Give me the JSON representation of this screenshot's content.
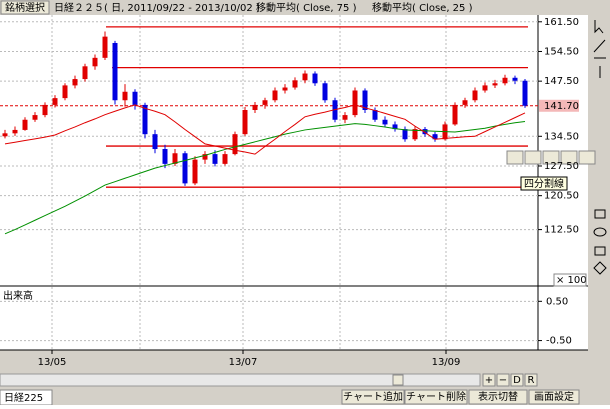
{
  "toolbar": {
    "select_button": "銘柄選択",
    "title": "日経２２５( 日, 2011/09/22 - 2013/10/02 )",
    "ma1": "移動平均( Close, 75 )",
    "ma2": "移動平均( Close, 25 )"
  },
  "chart": {
    "type": "candlestick",
    "ylim": [
      99.2,
      163.1
    ],
    "yticks": [
      {
        "value": 161.5,
        "label": "161.50"
      },
      {
        "value": 154.5,
        "label": "154.50"
      },
      {
        "value": 147.5,
        "label": "147.50"
      },
      {
        "value": 134.5,
        "label": "134.50"
      },
      {
        "value": 127.5,
        "label": "127.50"
      },
      {
        "value": 120.5,
        "label": "120.50"
      },
      {
        "value": 112.5,
        "label": "112.50"
      }
    ],
    "grid": true,
    "up_color": "#e00000",
    "down_color": "#0000e0",
    "ohlc": [
      [
        134.5,
        136.0,
        134.0,
        135.2
      ],
      [
        135.2,
        136.8,
        134.6,
        136.0
      ],
      [
        136.0,
        139.0,
        135.8,
        138.4
      ],
      [
        138.4,
        140.2,
        137.9,
        139.5
      ],
      [
        139.5,
        142.5,
        139.0,
        141.9
      ],
      [
        141.9,
        144.2,
        141.3,
        143.5
      ],
      [
        143.5,
        147.0,
        143.0,
        146.5
      ],
      [
        146.5,
        148.8,
        145.8,
        148.0
      ],
      [
        148.0,
        151.6,
        147.4,
        151.0
      ],
      [
        151.0,
        153.8,
        150.2,
        153.0
      ],
      [
        153.0,
        159.2,
        152.5,
        158.0
      ],
      [
        156.5,
        157.0,
        142.0,
        143.0
      ],
      [
        143.0,
        146.8,
        141.5,
        145.0
      ],
      [
        145.0,
        145.6,
        140.8,
        141.9
      ],
      [
        141.9,
        142.4,
        134.0,
        135.0
      ],
      [
        135.0,
        136.0,
        130.5,
        131.5
      ],
      [
        131.5,
        132.5,
        127.0,
        128.0
      ],
      [
        128.0,
        131.5,
        127.5,
        130.5
      ],
      [
        130.5,
        131.0,
        122.8,
        123.4
      ],
      [
        123.4,
        129.8,
        123.0,
        129.0
      ],
      [
        129.0,
        131.0,
        128.0,
        130.3
      ],
      [
        130.3,
        131.2,
        127.4,
        128.0
      ],
      [
        128.0,
        131.0,
        127.6,
        130.3
      ],
      [
        130.3,
        135.6,
        130.0,
        135.0
      ],
      [
        135.0,
        141.4,
        134.6,
        140.7
      ],
      [
        140.7,
        142.6,
        140.0,
        141.9
      ],
      [
        141.9,
        143.6,
        141.0,
        143.0
      ],
      [
        143.0,
        146.0,
        142.5,
        145.3
      ],
      [
        145.3,
        146.8,
        144.6,
        146.0
      ],
      [
        146.0,
        148.4,
        145.5,
        147.7
      ],
      [
        147.7,
        150.0,
        147.0,
        149.3
      ],
      [
        149.3,
        149.8,
        146.4,
        147.0
      ],
      [
        147.0,
        147.5,
        142.4,
        143.0
      ],
      [
        143.0,
        143.6,
        137.8,
        138.4
      ],
      [
        138.4,
        140.2,
        137.6,
        139.5
      ],
      [
        139.5,
        146.0,
        139.0,
        145.3
      ],
      [
        145.3,
        145.8,
        140.0,
        140.7
      ],
      [
        140.7,
        141.3,
        137.9,
        138.4
      ],
      [
        138.4,
        139.2,
        136.8,
        137.3
      ],
      [
        137.3,
        138.0,
        135.6,
        136.2
      ],
      [
        136.2,
        136.8,
        133.2,
        133.8
      ],
      [
        133.8,
        136.9,
        133.4,
        136.2
      ],
      [
        136.2,
        136.7,
        134.4,
        135.0
      ],
      [
        135.0,
        135.5,
        133.2,
        133.8
      ],
      [
        133.8,
        138.0,
        133.5,
        137.3
      ],
      [
        137.3,
        142.5,
        137.0,
        141.9
      ],
      [
        141.9,
        143.6,
        141.2,
        143.0
      ],
      [
        143.0,
        146.0,
        142.5,
        145.3
      ],
      [
        145.3,
        147.2,
        144.8,
        146.5
      ],
      [
        146.5,
        147.8,
        145.9,
        147.0
      ],
      [
        147.0,
        149.0,
        146.5,
        148.3
      ],
      [
        148.3,
        148.8,
        146.8,
        147.6
      ],
      [
        147.6,
        148.0,
        141.2,
        141.7
      ]
    ],
    "series": [
      {
        "color": "#009000",
        "values": [
          111.5,
          112.5,
          113.6,
          114.7,
          115.8,
          116.9,
          118.0,
          119.2,
          120.4,
          121.7,
          123.0,
          123.8,
          124.6,
          125.4,
          126.2,
          127.0,
          127.6,
          128.2,
          128.8,
          129.4,
          130.0,
          130.7,
          131.4,
          132.0,
          132.6,
          133.2,
          133.8,
          134.4,
          135.0,
          135.5,
          136.0,
          136.3,
          136.6,
          136.9,
          137.2,
          137.5,
          137.3,
          137.0,
          136.7,
          136.3,
          136.0,
          135.9,
          135.8,
          135.7,
          135.6,
          135.5,
          135.8,
          136.1,
          136.4,
          136.9,
          137.3,
          137.7,
          138.0
        ]
      },
      {
        "color": "#e00000",
        "values": [
          132.7,
          133.1,
          133.5,
          133.9,
          134.3,
          134.8,
          135.8,
          136.7,
          137.7,
          138.6,
          139.6,
          140.4,
          141.2,
          141.9,
          141.1,
          140.4,
          139.6,
          137.9,
          136.1,
          134.4,
          132.7,
          132.2,
          131.7,
          131.2,
          130.8,
          130.3,
          132.1,
          133.8,
          135.6,
          137.3,
          139.1,
          139.7,
          140.2,
          140.8,
          141.3,
          141.9,
          141.2,
          140.6,
          139.9,
          139.2,
          138.5,
          136.9,
          135.4,
          133.8,
          134.0,
          134.2,
          134.4,
          134.5,
          135.6,
          136.7,
          137.8,
          138.9,
          140.0
        ]
      }
    ],
    "lines": [
      160.3,
      150.7,
      132.2,
      122.5
    ],
    "current_price": {
      "value": 141.7,
      "label": "141.70"
    },
    "xticks": [
      "13/05",
      "13/07",
      "13/09"
    ],
    "unit_label": "× 100",
    "tooltip": "四分割線"
  },
  "volume": {
    "title": "出来高",
    "ylim": [
      -0.74,
      0.89
    ],
    "yticks": [
      {
        "value": 0.5,
        "label": "0.50"
      },
      {
        "value": -0.5,
        "label": "-0.50"
      }
    ]
  },
  "zoom_controls": [
    "+",
    "−",
    "D",
    "R"
  ],
  "tabs": {
    "active": "日経225",
    "buttons": [
      "チャート追加",
      "チャート削除",
      "表示切替",
      "画面設定"
    ]
  }
}
